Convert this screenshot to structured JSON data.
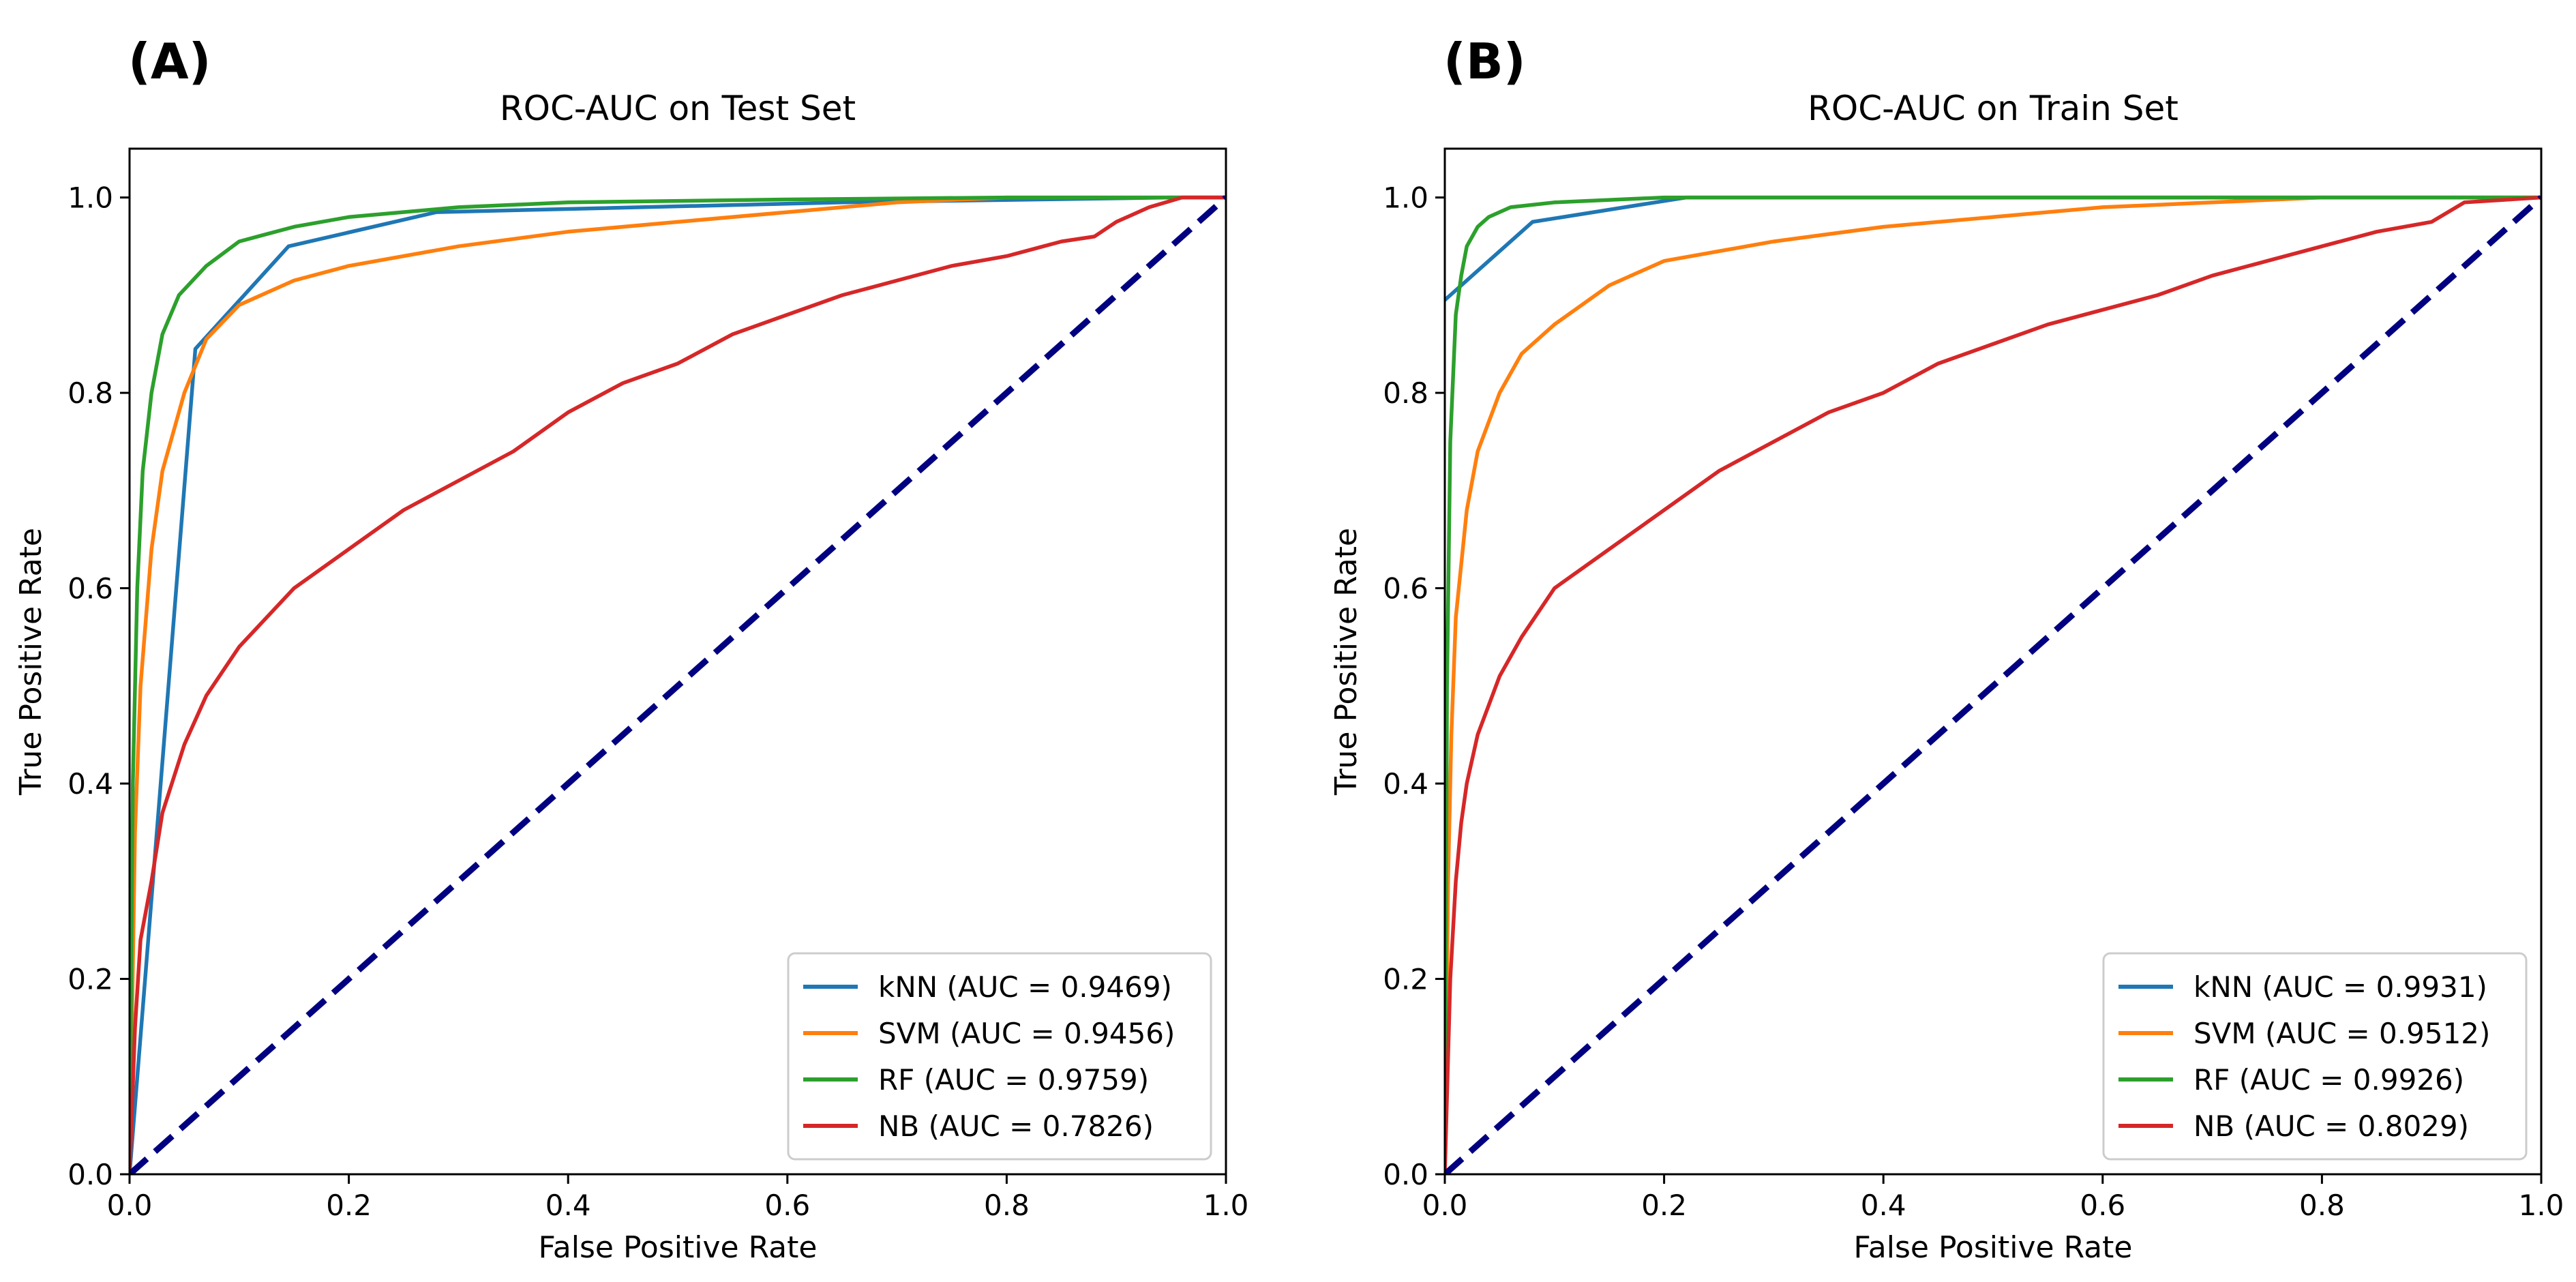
{
  "chart_data": [
    {
      "type": "line",
      "panel_label": "(A)",
      "title": "ROC-AUC on Test Set",
      "xlabel": "False Positive Rate",
      "ylabel": "True Positive Rate",
      "xlim": [
        0.0,
        1.0
      ],
      "ylim": [
        0.0,
        1.05
      ],
      "xticks": [
        "0.0",
        "0.2",
        "0.4",
        "0.6",
        "0.8",
        "1.0"
      ],
      "yticks": [
        "0.0",
        "0.2",
        "0.4",
        "0.6",
        "0.8",
        "1.0"
      ],
      "grid": false,
      "legend_position": "lower-right",
      "diagonal": {
        "color": "#000080",
        "x": [
          0,
          1
        ],
        "y": [
          0,
          1
        ]
      },
      "series": [
        {
          "name": "kNN (AUC = 0.9469)",
          "color": "#1f77b4",
          "x": [
            0,
            0.06,
            0.145,
            0.28,
            0.65,
            0.95,
            1.0
          ],
          "y": [
            0,
            0.845,
            0.95,
            0.985,
            0.995,
            1.0,
            1.0
          ]
        },
        {
          "name": "SVM (AUC = 0.9456)",
          "color": "#ff7f0e",
          "x": [
            0,
            0.005,
            0.01,
            0.02,
            0.03,
            0.05,
            0.07,
            0.1,
            0.15,
            0.2,
            0.3,
            0.4,
            0.5,
            0.6,
            0.7,
            0.8,
            1.0
          ],
          "y": [
            0,
            0.35,
            0.5,
            0.64,
            0.72,
            0.8,
            0.855,
            0.89,
            0.915,
            0.93,
            0.95,
            0.965,
            0.975,
            0.985,
            0.995,
            1.0,
            1.0
          ]
        },
        {
          "name": "RF (AUC = 0.9759)",
          "color": "#2ca02c",
          "x": [
            0,
            0.003,
            0.007,
            0.012,
            0.02,
            0.03,
            0.045,
            0.07,
            0.1,
            0.15,
            0.2,
            0.3,
            0.4,
            0.6,
            0.8,
            1.0
          ],
          "y": [
            0,
            0.4,
            0.6,
            0.72,
            0.8,
            0.86,
            0.9,
            0.93,
            0.955,
            0.97,
            0.98,
            0.99,
            0.995,
            0.998,
            1.0,
            1.0
          ]
        },
        {
          "name": "NB (AUC = 0.7826)",
          "color": "#d62728",
          "x": [
            0,
            0.005,
            0.01,
            0.02,
            0.03,
            0.05,
            0.07,
            0.1,
            0.15,
            0.2,
            0.25,
            0.3,
            0.35,
            0.4,
            0.45,
            0.5,
            0.55,
            0.6,
            0.65,
            0.7,
            0.75,
            0.8,
            0.85,
            0.88,
            0.9,
            0.93,
            0.96,
            1.0
          ],
          "y": [
            0,
            0.15,
            0.24,
            0.3,
            0.37,
            0.44,
            0.49,
            0.54,
            0.6,
            0.64,
            0.68,
            0.71,
            0.74,
            0.78,
            0.81,
            0.83,
            0.86,
            0.88,
            0.9,
            0.915,
            0.93,
            0.94,
            0.955,
            0.96,
            0.975,
            0.99,
            1.0,
            1.0
          ]
        }
      ]
    },
    {
      "type": "line",
      "panel_label": "(B)",
      "title": "ROC-AUC on Train Set",
      "xlabel": "False Positive Rate",
      "ylabel": "True Positive Rate",
      "xlim": [
        0.0,
        1.0
      ],
      "ylim": [
        0.0,
        1.05
      ],
      "xticks": [
        "0.0",
        "0.2",
        "0.4",
        "0.6",
        "0.8",
        "1.0"
      ],
      "yticks": [
        "0.0",
        "0.2",
        "0.4",
        "0.6",
        "0.8",
        "1.0"
      ],
      "grid": false,
      "legend_position": "lower-right",
      "diagonal": {
        "color": "#000080",
        "x": [
          0,
          1
        ],
        "y": [
          0,
          1
        ]
      },
      "series": [
        {
          "name": "kNN (AUC = 0.9931)",
          "color": "#1f77b4",
          "x": [
            0,
            0.08,
            0.22,
            1.0
          ],
          "y": [
            0.895,
            0.975,
            1.0,
            1.0
          ]
        },
        {
          "name": "SVM (AUC = 0.9512)",
          "color": "#ff7f0e",
          "x": [
            0,
            0.003,
            0.006,
            0.01,
            0.02,
            0.03,
            0.05,
            0.07,
            0.1,
            0.15,
            0.2,
            0.3,
            0.4,
            0.5,
            0.6,
            0.7,
            0.8,
            1.0
          ],
          "y": [
            0,
            0.3,
            0.45,
            0.57,
            0.68,
            0.74,
            0.8,
            0.84,
            0.87,
            0.91,
            0.935,
            0.955,
            0.97,
            0.98,
            0.99,
            0.995,
            1.0,
            1.0
          ]
        },
        {
          "name": "RF (AUC = 0.9926)",
          "color": "#2ca02c",
          "x": [
            0,
            0.002,
            0.005,
            0.01,
            0.015,
            0.02,
            0.03,
            0.04,
            0.06,
            0.1,
            0.2,
            1.0
          ],
          "y": [
            0,
            0.5,
            0.75,
            0.88,
            0.92,
            0.95,
            0.97,
            0.98,
            0.99,
            0.995,
            1.0,
            1.0
          ]
        },
        {
          "name": "NB (AUC = 0.8029)",
          "color": "#d62728",
          "x": [
            0,
            0.005,
            0.01,
            0.015,
            0.02,
            0.03,
            0.04,
            0.05,
            0.07,
            0.1,
            0.15,
            0.2,
            0.25,
            0.3,
            0.35,
            0.4,
            0.45,
            0.5,
            0.55,
            0.6,
            0.65,
            0.7,
            0.75,
            0.8,
            0.85,
            0.9,
            0.93,
            1.0
          ],
          "y": [
            0,
            0.2,
            0.3,
            0.36,
            0.4,
            0.45,
            0.48,
            0.51,
            0.55,
            0.6,
            0.64,
            0.68,
            0.72,
            0.75,
            0.78,
            0.8,
            0.83,
            0.85,
            0.87,
            0.885,
            0.9,
            0.92,
            0.935,
            0.95,
            0.965,
            0.975,
            0.995,
            1.0
          ]
        }
      ]
    }
  ]
}
